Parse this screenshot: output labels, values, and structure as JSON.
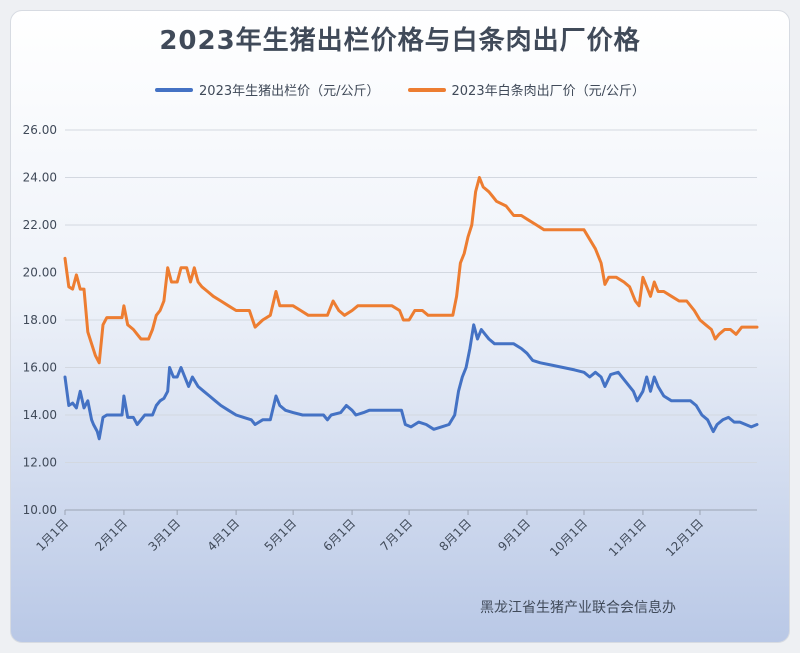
{
  "chart_data": {
    "type": "line",
    "title": "2023年生猪出栏价格与白条肉出厂价格",
    "source": "黑龙江省生猪产业联合会信息办",
    "xlabel": "",
    "ylabel": "",
    "ylim": [
      10,
      26
    ],
    "yticks": [
      "10.00",
      "12.00",
      "14.00",
      "16.00",
      "18.00",
      "20.00",
      "22.00",
      "24.00",
      "26.00"
    ],
    "xticks": [
      "1月1日",
      "2月1日",
      "3月1日",
      "4月1日",
      "5月1日",
      "6月1日",
      "7月1日",
      "8月1日",
      "9月1日",
      "10月1日",
      "11月1日",
      "12月1日"
    ],
    "xtick_days": [
      0,
      31,
      59,
      90,
      120,
      151,
      181,
      212,
      243,
      273,
      304,
      334
    ],
    "x_max_day": 364,
    "grid": true,
    "legend_position": "top-center",
    "series": [
      {
        "name": "2023年生猪出栏价（元/公斤）",
        "color": "#4472c4",
        "points": [
          [
            0,
            15.6
          ],
          [
            2,
            14.4
          ],
          [
            4,
            14.5
          ],
          [
            6,
            14.3
          ],
          [
            8,
            15.0
          ],
          [
            10,
            14.3
          ],
          [
            12,
            14.6
          ],
          [
            14,
            13.8
          ],
          [
            15,
            13.6
          ],
          [
            17,
            13.3
          ],
          [
            18,
            13.0
          ],
          [
            20,
            13.9
          ],
          [
            22,
            14.0
          ],
          [
            26,
            14.0
          ],
          [
            30,
            14.0
          ],
          [
            31,
            14.8
          ],
          [
            33,
            13.9
          ],
          [
            36,
            13.9
          ],
          [
            38,
            13.6
          ],
          [
            40,
            13.8
          ],
          [
            42,
            14.0
          ],
          [
            46,
            14.0
          ],
          [
            48,
            14.4
          ],
          [
            50,
            14.6
          ],
          [
            52,
            14.7
          ],
          [
            54,
            15.0
          ],
          [
            55,
            16.0
          ],
          [
            57,
            15.6
          ],
          [
            59,
            15.6
          ],
          [
            61,
            16.0
          ],
          [
            63,
            15.6
          ],
          [
            65,
            15.2
          ],
          [
            67,
            15.6
          ],
          [
            70,
            15.2
          ],
          [
            73,
            15.0
          ],
          [
            76,
            14.8
          ],
          [
            79,
            14.6
          ],
          [
            82,
            14.4
          ],
          [
            86,
            14.2
          ],
          [
            90,
            14.0
          ],
          [
            94,
            13.9
          ],
          [
            98,
            13.8
          ],
          [
            100,
            13.6
          ],
          [
            104,
            13.8
          ],
          [
            108,
            13.8
          ],
          [
            111,
            14.8
          ],
          [
            113,
            14.4
          ],
          [
            116,
            14.2
          ],
          [
            120,
            14.1
          ],
          [
            125,
            14.0
          ],
          [
            130,
            14.0
          ],
          [
            136,
            14.0
          ],
          [
            138,
            13.8
          ],
          [
            140,
            14.0
          ],
          [
            145,
            14.1
          ],
          [
            148,
            14.4
          ],
          [
            151,
            14.2
          ],
          [
            153,
            14.0
          ],
          [
            157,
            14.1
          ],
          [
            160,
            14.2
          ],
          [
            166,
            14.2
          ],
          [
            172,
            14.2
          ],
          [
            177,
            14.2
          ],
          [
            179,
            13.6
          ],
          [
            182,
            13.5
          ],
          [
            186,
            13.7
          ],
          [
            190,
            13.6
          ],
          [
            194,
            13.4
          ],
          [
            198,
            13.5
          ],
          [
            202,
            13.6
          ],
          [
            205,
            14.0
          ],
          [
            207,
            15.0
          ],
          [
            209,
            15.6
          ],
          [
            211,
            16.0
          ],
          [
            213,
            16.8
          ],
          [
            215,
            17.8
          ],
          [
            217,
            17.2
          ],
          [
            219,
            17.6
          ],
          [
            221,
            17.4
          ],
          [
            223,
            17.2
          ],
          [
            226,
            17.0
          ],
          [
            230,
            17.0
          ],
          [
            236,
            17.0
          ],
          [
            240,
            16.8
          ],
          [
            243,
            16.6
          ],
          [
            246,
            16.3
          ],
          [
            250,
            16.2
          ],
          [
            256,
            16.1
          ],
          [
            262,
            16.0
          ],
          [
            268,
            15.9
          ],
          [
            273,
            15.8
          ],
          [
            276,
            15.6
          ],
          [
            279,
            15.8
          ],
          [
            282,
            15.6
          ],
          [
            284,
            15.2
          ],
          [
            287,
            15.7
          ],
          [
            291,
            15.8
          ],
          [
            295,
            15.4
          ],
          [
            299,
            15.0
          ],
          [
            301,
            14.6
          ],
          [
            304,
            15.0
          ],
          [
            306,
            15.6
          ],
          [
            308,
            15.0
          ],
          [
            310,
            15.6
          ],
          [
            312,
            15.2
          ],
          [
            315,
            14.8
          ],
          [
            319,
            14.6
          ],
          [
            324,
            14.6
          ],
          [
            329,
            14.6
          ],
          [
            332,
            14.4
          ],
          [
            335,
            14.0
          ],
          [
            338,
            13.8
          ],
          [
            341,
            13.3
          ],
          [
            343,
            13.6
          ],
          [
            346,
            13.8
          ],
          [
            349,
            13.9
          ],
          [
            352,
            13.7
          ],
          [
            355,
            13.7
          ],
          [
            358,
            13.6
          ],
          [
            361,
            13.5
          ],
          [
            364,
            13.6
          ]
        ]
      },
      {
        "name": "2023年白条肉出厂价（元/公斤）",
        "color": "#ed7d31",
        "points": [
          [
            0,
            20.6
          ],
          [
            2,
            19.4
          ],
          [
            4,
            19.3
          ],
          [
            6,
            19.9
          ],
          [
            8,
            19.3
          ],
          [
            10,
            19.3
          ],
          [
            12,
            17.5
          ],
          [
            14,
            17.0
          ],
          [
            16,
            16.5
          ],
          [
            18,
            16.2
          ],
          [
            20,
            17.8
          ],
          [
            22,
            18.1
          ],
          [
            26,
            18.1
          ],
          [
            30,
            18.1
          ],
          [
            31,
            18.6
          ],
          [
            33,
            17.8
          ],
          [
            36,
            17.6
          ],
          [
            38,
            17.4
          ],
          [
            40,
            17.2
          ],
          [
            44,
            17.2
          ],
          [
            46,
            17.6
          ],
          [
            48,
            18.2
          ],
          [
            50,
            18.4
          ],
          [
            52,
            18.8
          ],
          [
            54,
            20.2
          ],
          [
            56,
            19.6
          ],
          [
            59,
            19.6
          ],
          [
            61,
            20.2
          ],
          [
            64,
            20.2
          ],
          [
            66,
            19.6
          ],
          [
            68,
            20.2
          ],
          [
            70,
            19.6
          ],
          [
            72,
            19.4
          ],
          [
            75,
            19.2
          ],
          [
            78,
            19.0
          ],
          [
            82,
            18.8
          ],
          [
            86,
            18.6
          ],
          [
            90,
            18.4
          ],
          [
            94,
            18.4
          ],
          [
            97,
            18.4
          ],
          [
            100,
            17.7
          ],
          [
            104,
            18.0
          ],
          [
            108,
            18.2
          ],
          [
            111,
            19.2
          ],
          [
            113,
            18.6
          ],
          [
            116,
            18.6
          ],
          [
            120,
            18.6
          ],
          [
            124,
            18.4
          ],
          [
            128,
            18.2
          ],
          [
            134,
            18.2
          ],
          [
            138,
            18.2
          ],
          [
            141,
            18.8
          ],
          [
            144,
            18.4
          ],
          [
            147,
            18.2
          ],
          [
            151,
            18.4
          ],
          [
            154,
            18.6
          ],
          [
            160,
            18.6
          ],
          [
            166,
            18.6
          ],
          [
            172,
            18.6
          ],
          [
            176,
            18.4
          ],
          [
            178,
            18.0
          ],
          [
            181,
            18.0
          ],
          [
            184,
            18.4
          ],
          [
            188,
            18.4
          ],
          [
            191,
            18.2
          ],
          [
            195,
            18.2
          ],
          [
            200,
            18.2
          ],
          [
            204,
            18.2
          ],
          [
            206,
            19.0
          ],
          [
            208,
            20.4
          ],
          [
            210,
            20.8
          ],
          [
            212,
            21.5
          ],
          [
            214,
            22.0
          ],
          [
            216,
            23.4
          ],
          [
            218,
            24.0
          ],
          [
            220,
            23.6
          ],
          [
            223,
            23.4
          ],
          [
            225,
            23.2
          ],
          [
            227,
            23.0
          ],
          [
            232,
            22.8
          ],
          [
            236,
            22.4
          ],
          [
            240,
            22.4
          ],
          [
            244,
            22.2
          ],
          [
            248,
            22.0
          ],
          [
            252,
            21.8
          ],
          [
            256,
            21.8
          ],
          [
            262,
            21.8
          ],
          [
            268,
            21.8
          ],
          [
            273,
            21.8
          ],
          [
            276,
            21.4
          ],
          [
            279,
            21.0
          ],
          [
            282,
            20.4
          ],
          [
            284,
            19.5
          ],
          [
            286,
            19.8
          ],
          [
            290,
            19.8
          ],
          [
            294,
            19.6
          ],
          [
            297,
            19.4
          ],
          [
            300,
            18.8
          ],
          [
            302,
            18.6
          ],
          [
            304,
            19.8
          ],
          [
            306,
            19.4
          ],
          [
            308,
            19.0
          ],
          [
            310,
            19.6
          ],
          [
            312,
            19.2
          ],
          [
            315,
            19.2
          ],
          [
            319,
            19.0
          ],
          [
            323,
            18.8
          ],
          [
            327,
            18.8
          ],
          [
            331,
            18.4
          ],
          [
            334,
            18.0
          ],
          [
            337,
            17.8
          ],
          [
            340,
            17.6
          ],
          [
            342,
            17.2
          ],
          [
            344,
            17.4
          ],
          [
            347,
            17.6
          ],
          [
            350,
            17.6
          ],
          [
            353,
            17.4
          ],
          [
            356,
            17.7
          ],
          [
            360,
            17.7
          ],
          [
            364,
            17.7
          ]
        ]
      }
    ]
  }
}
